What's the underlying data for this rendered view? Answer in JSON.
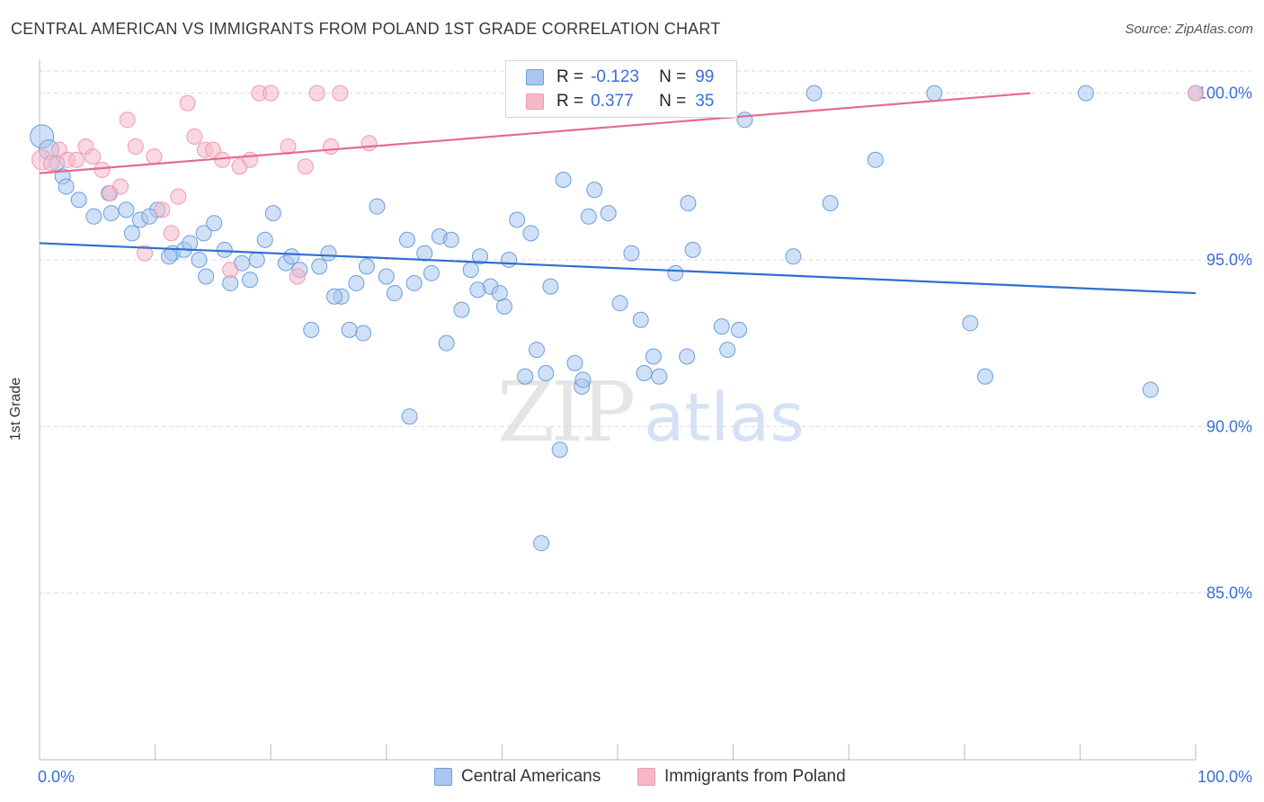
{
  "header": {
    "title": "CENTRAL AMERICAN VS IMMIGRANTS FROM POLAND 1ST GRADE CORRELATION CHART",
    "source": "Source: ZipAtlas.com"
  },
  "watermark": {
    "zip": "ZIP",
    "atlas": "atlas"
  },
  "legend_box": {
    "rows": [
      {
        "r_label": "R =",
        "r_value": "-0.123",
        "n_label": "N =",
        "n_value": "99"
      },
      {
        "r_label": "R =",
        "r_value": "0.377",
        "n_label": "N =",
        "n_value": "35"
      }
    ]
  },
  "bottom_legend": {
    "series1": "Central Americans",
    "series2": "Immigrants from Poland"
  },
  "colors": {
    "blue_fill": "#aac7ef",
    "blue_stroke": "#6b9ee0",
    "blue_line": "#2f6fd1",
    "pink_fill": "#f6b8c9",
    "pink_stroke": "#ee9ab1",
    "pink_line": "#e46a92",
    "tick_text": "#3a6fd8",
    "grid": "#d9d9d9"
  },
  "chart_data": {
    "type": "scatter",
    "title": "CENTRAL AMERICAN VS IMMIGRANTS FROM POLAND 1ST GRADE CORRELATION CHART",
    "xlabel": "",
    "ylabel": "1st Grade",
    "xlim": [
      0,
      100
    ],
    "ylim": [
      80,
      100.8
    ],
    "x_tick_labels": [
      "0.0%",
      "100.0%"
    ],
    "y_ticks": [
      85,
      90,
      95,
      100
    ],
    "y_tick_labels": [
      "85.0%",
      "90.0%",
      "95.0%",
      "100.0%"
    ],
    "grid": true,
    "legend": "top-center",
    "series": [
      {
        "name": "Central Americans",
        "stats": {
          "R": -0.123,
          "N": 99
        },
        "trend": {
          "x": [
            0,
            100
          ],
          "y": [
            95.5,
            94.0
          ]
        },
        "points": [
          [
            0.2,
            98.7
          ],
          [
            0.8,
            98.3
          ],
          [
            1.5,
            97.9
          ],
          [
            2.0,
            97.5
          ],
          [
            2.3,
            97.2
          ],
          [
            3.4,
            96.8
          ],
          [
            4.7,
            96.3
          ],
          [
            6.2,
            96.4
          ],
          [
            7.5,
            96.5
          ],
          [
            8.0,
            95.8
          ],
          [
            8.7,
            96.2
          ],
          [
            10.2,
            96.5
          ],
          [
            11.5,
            95.2
          ],
          [
            12.5,
            95.3
          ],
          [
            13.0,
            95.5
          ],
          [
            14.2,
            95.8
          ],
          [
            15.1,
            96.1
          ],
          [
            16.0,
            95.3
          ],
          [
            17.5,
            94.9
          ],
          [
            18.2,
            94.4
          ],
          [
            19.5,
            95.6
          ],
          [
            20.2,
            96.4
          ],
          [
            21.3,
            94.9
          ],
          [
            22.5,
            94.7
          ],
          [
            24.2,
            94.8
          ],
          [
            25.0,
            95.2
          ],
          [
            26.1,
            93.9
          ],
          [
            27.4,
            94.3
          ],
          [
            28.3,
            94.8
          ],
          [
            29.2,
            96.6
          ],
          [
            30.7,
            94.0
          ],
          [
            31.8,
            95.6
          ],
          [
            32.4,
            94.3
          ],
          [
            33.3,
            95.2
          ],
          [
            34.6,
            95.7
          ],
          [
            35.6,
            95.6
          ],
          [
            36.5,
            93.5
          ],
          [
            37.3,
            94.7
          ],
          [
            38.1,
            95.1
          ],
          [
            39.0,
            94.2
          ],
          [
            40.2,
            93.6
          ],
          [
            41.3,
            96.2
          ],
          [
            42.5,
            95.8
          ],
          [
            43.0,
            92.3
          ],
          [
            44.2,
            94.2
          ],
          [
            45.3,
            97.4
          ],
          [
            46.3,
            91.9
          ],
          [
            46.9,
            91.2
          ],
          [
            47.5,
            96.3
          ],
          [
            48.0,
            97.1
          ],
          [
            49.2,
            96.4
          ],
          [
            50.2,
            93.7
          ],
          [
            51.2,
            95.2
          ],
          [
            52.3,
            91.6
          ],
          [
            53.1,
            92.1
          ],
          [
            53.6,
            91.5
          ],
          [
            55.0,
            94.6
          ],
          [
            56.1,
            96.7
          ],
          [
            56.5,
            95.3
          ],
          [
            59.0,
            93.0
          ],
          [
            60.5,
            92.9
          ],
          [
            61.0,
            99.2
          ],
          [
            65.2,
            95.1
          ],
          [
            67.0,
            100.0
          ],
          [
            68.4,
            96.7
          ],
          [
            72.3,
            98.0
          ],
          [
            77.4,
            100.0
          ],
          [
            80.5,
            93.1
          ],
          [
            81.8,
            91.5
          ],
          [
            90.5,
            100.0
          ],
          [
            96.1,
            91.1
          ],
          [
            100.0,
            100.0
          ],
          [
            14.4,
            94.5
          ],
          [
            23.5,
            92.9
          ],
          [
            28.0,
            92.8
          ],
          [
            32.0,
            90.3
          ],
          [
            35.2,
            92.5
          ],
          [
            39.8,
            94.0
          ],
          [
            42.0,
            91.5
          ],
          [
            43.4,
            86.5
          ],
          [
            43.8,
            91.6
          ],
          [
            45.0,
            89.3
          ],
          [
            47.0,
            91.4
          ],
          [
            52.0,
            93.2
          ],
          [
            56.0,
            92.1
          ],
          [
            59.5,
            92.3
          ],
          [
            6.0,
            97.0
          ],
          [
            9.5,
            96.3
          ],
          [
            11.2,
            95.1
          ],
          [
            13.8,
            95.0
          ],
          [
            16.5,
            94.3
          ],
          [
            18.8,
            95.0
          ],
          [
            21.8,
            95.1
          ],
          [
            25.5,
            93.9
          ],
          [
            26.8,
            92.9
          ],
          [
            30.0,
            94.5
          ],
          [
            33.9,
            94.6
          ],
          [
            37.9,
            94.1
          ],
          [
            40.6,
            95.0
          ]
        ]
      },
      {
        "name": "Immigrants from Poland",
        "stats": {
          "R": 0.377,
          "N": 35
        },
        "trend": {
          "x": [
            0,
            85.7
          ],
          "y": [
            97.6,
            100.0
          ]
        },
        "points": [
          [
            0.2,
            98.0
          ],
          [
            1.0,
            97.9
          ],
          [
            1.7,
            98.3
          ],
          [
            2.4,
            98.0
          ],
          [
            3.2,
            98.0
          ],
          [
            4.0,
            98.4
          ],
          [
            4.6,
            98.1
          ],
          [
            5.4,
            97.7
          ],
          [
            6.1,
            97.0
          ],
          [
            7.0,
            97.2
          ],
          [
            7.6,
            99.2
          ],
          [
            8.3,
            98.4
          ],
          [
            9.1,
            95.2
          ],
          [
            9.9,
            98.1
          ],
          [
            10.6,
            96.5
          ],
          [
            11.4,
            95.8
          ],
          [
            12.0,
            96.9
          ],
          [
            12.8,
            99.7
          ],
          [
            13.4,
            98.7
          ],
          [
            14.3,
            98.3
          ],
          [
            15.0,
            98.3
          ],
          [
            15.8,
            98.0
          ],
          [
            16.5,
            94.7
          ],
          [
            17.3,
            97.8
          ],
          [
            18.2,
            98.0
          ],
          [
            19.0,
            100.0
          ],
          [
            20.0,
            100.0
          ],
          [
            21.5,
            98.4
          ],
          [
            22.3,
            94.5
          ],
          [
            23.0,
            97.8
          ],
          [
            24.0,
            100.0
          ],
          [
            25.2,
            98.4
          ],
          [
            26.0,
            100.0
          ],
          [
            28.5,
            98.5
          ],
          [
            100.0,
            100.0
          ]
        ]
      }
    ]
  }
}
